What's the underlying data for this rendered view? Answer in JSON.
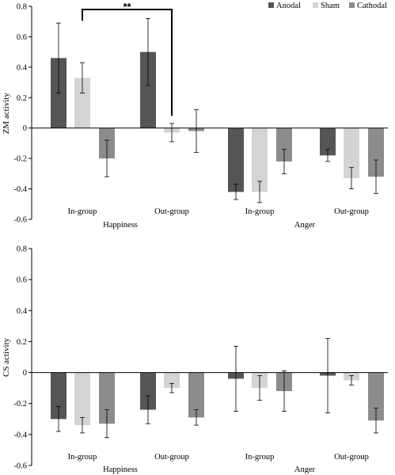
{
  "colors": {
    "Anodal": "#555555",
    "Sham": "#d4d4d4",
    "Cathodal": "#8c8c8c"
  },
  "legend": [
    "Anodal",
    "Sham",
    "Cathodal"
  ],
  "chart_data": [
    {
      "type": "bar",
      "ylabel": "ZM activity",
      "ylim": [
        -0.6,
        0.8
      ],
      "ticks": [
        "0.8",
        "0.6",
        "0.4",
        "0.2",
        "0",
        "-0.2",
        "-0.4",
        "-0.6"
      ],
      "legend_position": "top-right",
      "categories": [
        "In-group",
        "Out-group",
        "In-group",
        "Out-group"
      ],
      "groups": [
        "Happiness",
        "Anger"
      ],
      "series": [
        {
          "name": "Anodal",
          "values": [
            0.46,
            0.5,
            -0.42,
            -0.18
          ],
          "errors": [
            0.23,
            0.22,
            0.05,
            0.04
          ]
        },
        {
          "name": "Sham",
          "values": [
            0.33,
            -0.03,
            -0.42,
            -0.33
          ],
          "errors": [
            0.1,
            0.06,
            0.07,
            0.07
          ]
        },
        {
          "name": "Cathodal",
          "values": [
            -0.2,
            -0.02,
            -0.22,
            -0.32
          ],
          "errors": [
            0.12,
            0.14,
            0.08,
            0.11
          ]
        }
      ],
      "annotations": [
        {
          "text": "**"
        }
      ]
    },
    {
      "type": "bar",
      "ylabel": "CS activity",
      "ylim": [
        -0.6,
        0.8
      ],
      "ticks": [
        "0.8",
        "0.6",
        "0.4",
        "0.2",
        "0",
        "-0.2",
        "-0.4",
        "-0.6"
      ],
      "categories": [
        "In-group",
        "Out-group",
        "In-group",
        "Out-group"
      ],
      "groups": [
        "Happiness",
        "Anger"
      ],
      "series": [
        {
          "name": "Anodal",
          "values": [
            -0.3,
            -0.24,
            -0.04,
            -0.02
          ],
          "errors": [
            0.08,
            0.09,
            0.21,
            0.24
          ]
        },
        {
          "name": "Sham",
          "values": [
            -0.34,
            -0.1,
            -0.1,
            -0.05
          ],
          "errors": [
            0.05,
            0.03,
            0.08,
            0.03
          ]
        },
        {
          "name": "Cathodal",
          "values": [
            -0.33,
            -0.29,
            -0.12,
            -0.31
          ],
          "errors": [
            0.09,
            0.05,
            0.13,
            0.08
          ]
        }
      ]
    }
  ]
}
